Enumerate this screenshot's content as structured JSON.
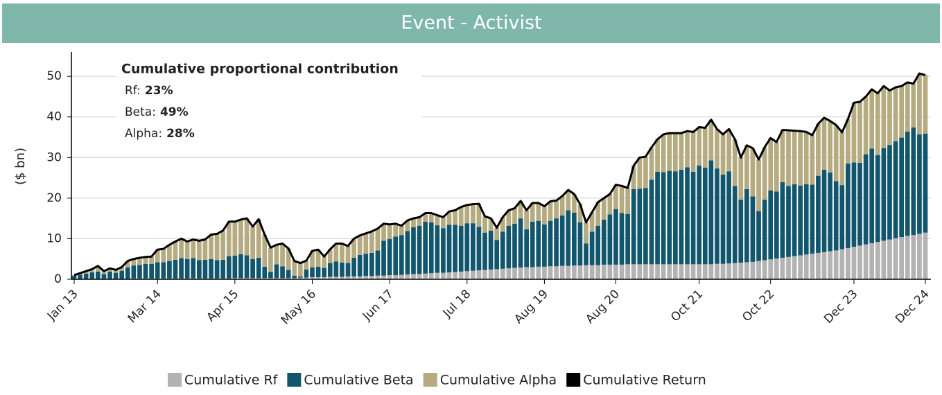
{
  "chart_data": {
    "type": "bar",
    "stacked": true,
    "title": "Event - Activist",
    "y_label": "($ bn)",
    "annotation": {
      "title": "Cumulative proportional contribution",
      "items": [
        {
          "label": "Rf:",
          "value": "23%"
        },
        {
          "label": "Beta:",
          "value": "49%"
        },
        {
          "label": "Alpha:",
          "value": "28%"
        }
      ]
    },
    "categories": [
      "Jan 13",
      null,
      null,
      null,
      null,
      null,
      null,
      null,
      null,
      null,
      null,
      null,
      null,
      null,
      "Mar 14",
      null,
      null,
      null,
      null,
      null,
      null,
      null,
      null,
      null,
      null,
      null,
      null,
      "Apr 15",
      null,
      null,
      null,
      null,
      null,
      null,
      null,
      null,
      null,
      null,
      null,
      null,
      "May 16",
      null,
      null,
      null,
      null,
      null,
      null,
      null,
      null,
      null,
      null,
      null,
      null,
      "Jun 17",
      null,
      null,
      null,
      null,
      null,
      null,
      null,
      null,
      null,
      null,
      null,
      null,
      "Jul 18",
      null,
      null,
      null,
      null,
      null,
      null,
      null,
      null,
      null,
      null,
      null,
      null,
      "Aug 19",
      null,
      null,
      null,
      null,
      null,
      null,
      null,
      null,
      null,
      null,
      null,
      "Aug 20",
      null,
      null,
      null,
      null,
      null,
      null,
      null,
      null,
      null,
      null,
      null,
      null,
      null,
      "Oct 21",
      null,
      null,
      null,
      null,
      null,
      null,
      null,
      null,
      null,
      null,
      null,
      "Oct 22",
      null,
      null,
      null,
      null,
      null,
      null,
      null,
      null,
      null,
      null,
      null,
      null,
      null,
      "Dec 23",
      null,
      null,
      null,
      null,
      null,
      null,
      null,
      null,
      null,
      null,
      null,
      "Dec 24"
    ],
    "series": [
      {
        "name": "Cumulative Rf",
        "color": "#b3b3b3",
        "values": [
          0.1,
          0.1,
          0.1,
          0.1,
          0.1,
          0.1,
          0.1,
          0.1,
          0.1,
          0.1,
          0.2,
          0.2,
          0.2,
          0.2,
          0.2,
          0.2,
          0.2,
          0.2,
          0.2,
          0.2,
          0.2,
          0.2,
          0.2,
          0.2,
          0.2,
          0.2,
          0.2,
          0.3,
          0.3,
          0.3,
          0.3,
          0.3,
          0.3,
          0.3,
          0.3,
          0.3,
          0.3,
          0.3,
          0.4,
          0.4,
          0.5,
          0.5,
          0.5,
          0.6,
          0.6,
          0.6,
          0.7,
          0.7,
          0.7,
          0.8,
          0.8,
          0.9,
          0.9,
          1.0,
          1.0,
          1.1,
          1.2,
          1.3,
          1.3,
          1.4,
          1.5,
          1.6,
          1.6,
          1.7,
          1.8,
          1.9,
          2.0,
          2.1,
          2.2,
          2.3,
          2.4,
          2.5,
          2.6,
          2.7,
          2.8,
          2.9,
          3.0,
          3.0,
          3.1,
          3.1,
          3.2,
          3.2,
          3.3,
          3.3,
          3.4,
          3.4,
          3.5,
          3.5,
          3.5,
          3.6,
          3.6,
          3.6,
          3.6,
          3.7,
          3.7,
          3.7,
          3.7,
          3.7,
          3.7,
          3.7,
          3.7,
          3.7,
          3.7,
          3.7,
          3.7,
          3.7,
          3.7,
          3.7,
          3.8,
          3.8,
          3.9,
          4.0,
          4.1,
          4.2,
          4.3,
          4.5,
          4.7,
          4.9,
          5.1,
          5.3,
          5.5,
          5.7,
          5.9,
          6.1,
          6.3,
          6.5,
          6.7,
          6.9,
          7.1,
          7.4,
          7.7,
          8.0,
          8.3,
          8.6,
          8.9,
          9.2,
          9.5,
          9.8,
          10.1,
          10.4,
          10.7,
          10.9,
          11.2,
          11.5
        ]
      },
      {
        "name": "Cumulative Beta",
        "color": "#12566e",
        "values": [
          0.8,
          1.0,
          1.3,
          1.6,
          1.8,
          1.2,
          1.8,
          1.5,
          2.0,
          2.8,
          3.2,
          3.3,
          3.6,
          3.6,
          4.0,
          4.0,
          4.3,
          4.6,
          5.0,
          4.8,
          5.0,
          4.5,
          4.6,
          4.8,
          4.5,
          4.6,
          5.5,
          5.5,
          5.9,
          5.6,
          4.7,
          5.0,
          2.8,
          1.5,
          3.4,
          2.9,
          2.0,
          0.6,
          0.3,
          2.0,
          2.4,
          2.6,
          2.3,
          3.4,
          3.8,
          3.5,
          3.3,
          4.6,
          5.3,
          5.5,
          5.7,
          6.2,
          8.6,
          8.9,
          9.5,
          9.8,
          10.7,
          11.5,
          11.9,
          12.8,
          12.5,
          11.7,
          11.0,
          11.7,
          11.6,
          11.3,
          11.8,
          11.7,
          10.7,
          9.2,
          9.6,
          7.2,
          9.1,
          10.5,
          10.9,
          12.1,
          9.3,
          11.2,
          11.3,
          10.4,
          11.2,
          11.8,
          12.4,
          13.7,
          13.0,
          10.6,
          5.3,
          8.2,
          9.7,
          11.1,
          12.4,
          13.7,
          12.7,
          12.4,
          18.5,
          18.6,
          18.8,
          20.8,
          22.8,
          22.7,
          23.0,
          22.9,
          23.3,
          23.9,
          22.8,
          24.3,
          23.8,
          25.6,
          23.5,
          22.0,
          22.7,
          19.0,
          15.5,
          18.0,
          16.1,
          12.3,
          14.9,
          17.0,
          16.5,
          18.6,
          17.5,
          17.7,
          17.2,
          17.3,
          17.0,
          19.0,
          20.3,
          19.4,
          17.1,
          15.8,
          20.8,
          20.8,
          20.4,
          22.2,
          23.3,
          21.4,
          22.8,
          23.3,
          23.9,
          24.5,
          25.7,
          26.5,
          24.5,
          24.4
        ]
      },
      {
        "name": "Cumulative Alpha",
        "color": "#b5aa80",
        "values": [
          0.1,
          0.4,
          0.6,
          0.8,
          1.4,
          0.7,
          0.8,
          0.7,
          0.9,
          1.6,
          1.6,
          1.8,
          1.7,
          1.8,
          3.1,
          3.3,
          4.0,
          4.5,
          4.8,
          4.3,
          4.6,
          4.8,
          5.0,
          6.0,
          6.5,
          7.2,
          8.5,
          8.4,
          8.5,
          9.1,
          8.0,
          9.5,
          7.9,
          6.0,
          4.8,
          5.6,
          5.3,
          3.6,
          3.3,
          2.2,
          4.1,
          4.2,
          2.8,
          3.4,
          4.4,
          4.7,
          4.2,
          4.7,
          4.8,
          5.0,
          5.3,
          5.4,
          4.2,
          3.6,
          3.2,
          2.3,
          2.6,
          2.2,
          2.1,
          2.1,
          2.3,
          2.5,
          2.7,
          3.3,
          3.6,
          4.6,
          4.5,
          4.7,
          5.7,
          4.0,
          3.0,
          3.0,
          3.6,
          3.8,
          3.8,
          4.3,
          4.7,
          4.6,
          4.4,
          4.5,
          4.8,
          4.4,
          4.8,
          5.0,
          4.6,
          4.5,
          5.2,
          4.8,
          5.8,
          5.3,
          5.0,
          6.0,
          6.7,
          6.4,
          5.8,
          7.7,
          7.7,
          8.0,
          8.0,
          9.3,
          9.3,
          9.4,
          9.0,
          8.9,
          9.8,
          9.5,
          9.8,
          10.0,
          9.7,
          9.9,
          10.4,
          11.5,
          10.4,
          10.8,
          11.9,
          12.7,
          12.9,
          12.9,
          12.2,
          12.9,
          13.7,
          13.2,
          13.4,
          12.9,
          12.2,
          12.8,
          12.8,
          12.7,
          13.8,
          13.0,
          11.0,
          14.7,
          15.0,
          14.2,
          14.6,
          15.2,
          15.3,
          13.4,
          13.3,
          12.7,
          12.1,
          10.8,
          15.0,
          14.4
        ]
      },
      {
        "name": "Cumulative Return",
        "color": "#000000",
        "type": "line",
        "values": [
          1.0,
          1.5,
          2.0,
          2.5,
          3.3,
          2.0,
          2.7,
          2.3,
          3.0,
          4.5,
          5.0,
          5.3,
          5.5,
          5.6,
          7.3,
          7.5,
          8.5,
          9.3,
          10.0,
          9.3,
          9.8,
          9.5,
          9.8,
          11.0,
          11.2,
          12.0,
          14.2,
          14.2,
          14.7,
          15.0,
          13.0,
          14.8,
          11.0,
          7.8,
          8.5,
          8.8,
          7.6,
          4.5,
          4.0,
          4.6,
          7.0,
          7.3,
          5.6,
          7.4,
          8.8,
          8.8,
          8.2,
          10.0,
          10.8,
          11.3,
          11.8,
          12.5,
          13.7,
          13.5,
          13.7,
          13.2,
          14.5,
          15.0,
          15.3,
          16.3,
          16.3,
          15.8,
          15.3,
          16.7,
          17.0,
          17.8,
          18.3,
          18.5,
          18.6,
          15.5,
          15.0,
          12.7,
          15.3,
          17.0,
          17.5,
          19.3,
          17.0,
          18.8,
          18.8,
          18.0,
          19.2,
          19.4,
          20.5,
          22.0,
          21.0,
          18.5,
          14.0,
          16.5,
          19.0,
          20.0,
          21.0,
          23.3,
          23.0,
          22.5,
          28.0,
          30.0,
          30.2,
          32.5,
          34.5,
          35.7,
          36.0,
          36.0,
          36.0,
          36.5,
          36.3,
          37.5,
          37.3,
          39.3,
          37.0,
          35.7,
          37.0,
          34.5,
          30.0,
          33.0,
          32.3,
          29.5,
          32.5,
          34.8,
          33.8,
          36.8,
          36.7,
          36.6,
          36.5,
          36.3,
          35.5,
          38.3,
          39.8,
          39.0,
          38.0,
          36.2,
          39.5,
          43.5,
          43.7,
          45.0,
          46.8,
          45.8,
          47.6,
          46.5,
          47.3,
          47.6,
          48.5,
          48.2,
          50.7,
          50.3
        ]
      }
    ],
    "ylim": [
      0,
      56
    ],
    "yticks": [
      0,
      10,
      20,
      30,
      40,
      50
    ],
    "grid": true
  }
}
